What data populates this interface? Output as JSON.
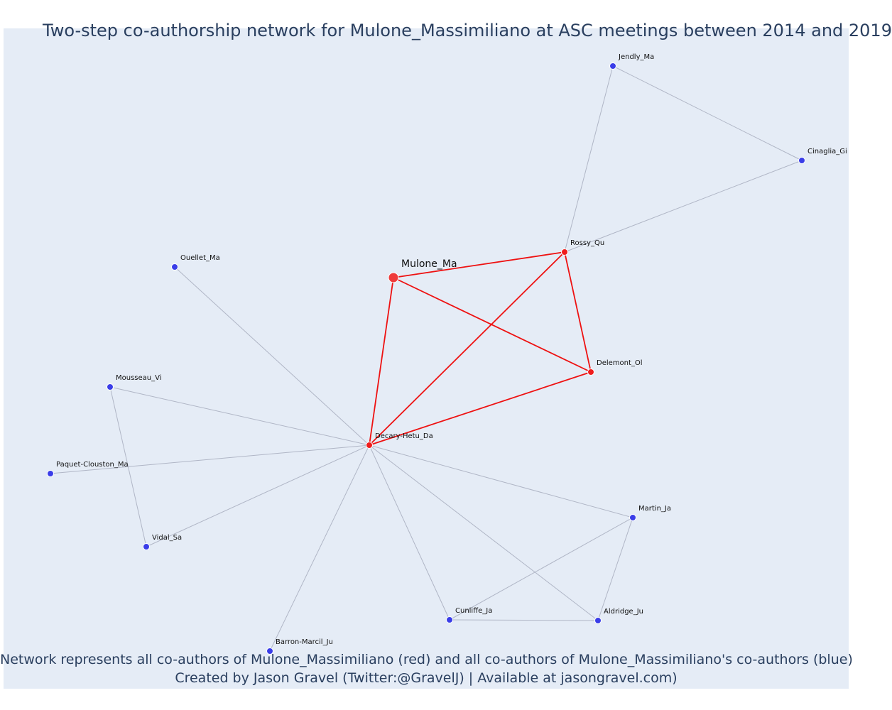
{
  "title": "Two-step co-authorship network for Mulone_Massimiliano at ASC meetings between 2014 and 2019",
  "caption": {
    "line1": "Network represents all co-authors of Mulone_Massimiliano (red) and all co-authors of Mulone_Massimiliano's co-authors (blue)",
    "line2": "Created by Jason Gravel (Twitter:@GravelJ) | Available at jasongravel.com)"
  },
  "colors": {
    "background": "#e5ecf6",
    "focal": "#ef3b3b",
    "coauthor": "#ef1d1d",
    "second_step": "#3a3de8",
    "strong_edge": "#ee1111",
    "weak_edge": "#b0b6c6"
  },
  "nodes": [
    {
      "id": "Mulone_Ma",
      "group": "focal"
    },
    {
      "id": "Rossy_Qu",
      "group": "coauthor"
    },
    {
      "id": "Delemont_Ol",
      "group": "coauthor"
    },
    {
      "id": "Decary-Hetu_Da",
      "group": "coauthor"
    },
    {
      "id": "Jendly_Ma",
      "group": "second_step"
    },
    {
      "id": "Cinaglia_Gi",
      "group": "second_step"
    },
    {
      "id": "Ouellet_Ma",
      "group": "second_step"
    },
    {
      "id": "Mousseau_Vi",
      "group": "second_step"
    },
    {
      "id": "Paquet-Clouston_Ma",
      "group": "second_step"
    },
    {
      "id": "Vidal_Sa",
      "group": "second_step"
    },
    {
      "id": "Martin_Ja",
      "group": "second_step"
    },
    {
      "id": "Cunliffe_Ja",
      "group": "second_step"
    },
    {
      "id": "Aldridge_Ju",
      "group": "second_step"
    },
    {
      "id": "Barron-Marcil_Ju",
      "group": "second_step"
    }
  ],
  "edges": [
    {
      "source": "Mulone_Ma",
      "target": "Rossy_Qu",
      "type": "strong"
    },
    {
      "source": "Mulone_Ma",
      "target": "Delemont_Ol",
      "type": "strong"
    },
    {
      "source": "Mulone_Ma",
      "target": "Decary-Hetu_Da",
      "type": "strong"
    },
    {
      "source": "Rossy_Qu",
      "target": "Delemont_Ol",
      "type": "strong"
    },
    {
      "source": "Rossy_Qu",
      "target": "Decary-Hetu_Da",
      "type": "strong"
    },
    {
      "source": "Delemont_Ol",
      "target": "Decary-Hetu_Da",
      "type": "strong"
    },
    {
      "source": "Rossy_Qu",
      "target": "Jendly_Ma",
      "type": "weak"
    },
    {
      "source": "Rossy_Qu",
      "target": "Cinaglia_Gi",
      "type": "weak"
    },
    {
      "source": "Jendly_Ma",
      "target": "Cinaglia_Gi",
      "type": "weak"
    },
    {
      "source": "Decary-Hetu_Da",
      "target": "Ouellet_Ma",
      "type": "weak"
    },
    {
      "source": "Decary-Hetu_Da",
      "target": "Mousseau_Vi",
      "type": "weak"
    },
    {
      "source": "Decary-Hetu_Da",
      "target": "Paquet-Clouston_Ma",
      "type": "weak"
    },
    {
      "source": "Decary-Hetu_Da",
      "target": "Vidal_Sa",
      "type": "weak"
    },
    {
      "source": "Mousseau_Vi",
      "target": "Vidal_Sa",
      "type": "weak"
    },
    {
      "source": "Decary-Hetu_Da",
      "target": "Martin_Ja",
      "type": "weak"
    },
    {
      "source": "Decary-Hetu_Da",
      "target": "Cunliffe_Ja",
      "type": "weak"
    },
    {
      "source": "Decary-Hetu_Da",
      "target": "Aldridge_Ju",
      "type": "weak"
    },
    {
      "source": "Decary-Hetu_Da",
      "target": "Barron-Marcil_Ju",
      "type": "weak"
    },
    {
      "source": "Martin_Ja",
      "target": "Cunliffe_Ja",
      "type": "weak"
    },
    {
      "source": "Martin_Ja",
      "target": "Aldridge_Ju",
      "type": "weak"
    },
    {
      "source": "Cunliffe_Ja",
      "target": "Aldridge_Ju",
      "type": "weak"
    }
  ]
}
